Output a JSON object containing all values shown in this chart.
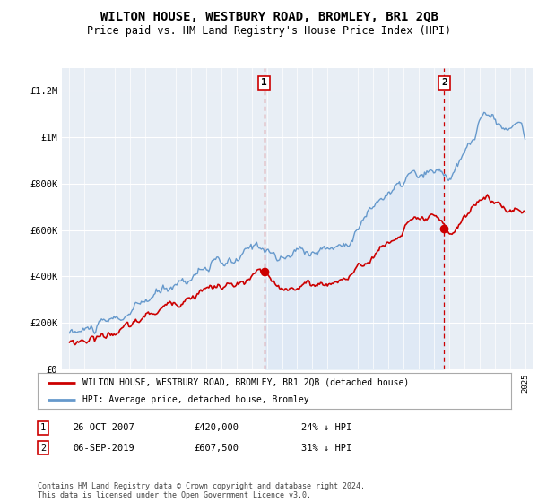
{
  "title": "WILTON HOUSE, WESTBURY ROAD, BROMLEY, BR1 2QB",
  "subtitle": "Price paid vs. HM Land Registry's House Price Index (HPI)",
  "legend_label_red": "WILTON HOUSE, WESTBURY ROAD, BROMLEY, BR1 2QB (detached house)",
  "legend_label_blue": "HPI: Average price, detached house, Bromley",
  "footnote": "Contains HM Land Registry data © Crown copyright and database right 2024.\nThis data is licensed under the Open Government Licence v3.0.",
  "sale1_date": "26-OCT-2007",
  "sale1_price": "£420,000",
  "sale1_hpi": "24% ↓ HPI",
  "sale2_date": "06-SEP-2019",
  "sale2_price": "£607,500",
  "sale2_hpi": "31% ↓ HPI",
  "marker1_x": 2007.82,
  "marker1_y": 420000,
  "marker2_x": 2019.68,
  "marker2_y": 607500,
  "red_color": "#cc0000",
  "blue_color": "#6699cc",
  "blue_fill_color": "#dce8f5",
  "background_chart": "#e8eef5",
  "background_fig": "#ffffff",
  "ylim": [
    0,
    1300000
  ],
  "yticks": [
    0,
    200000,
    400000,
    600000,
    800000,
    1000000,
    1200000
  ],
  "ytick_labels": [
    "£0",
    "£200K",
    "£400K",
    "£600K",
    "£800K",
    "£1M",
    "£1.2M"
  ],
  "xlim_min": 1994.5,
  "xlim_max": 2025.5
}
